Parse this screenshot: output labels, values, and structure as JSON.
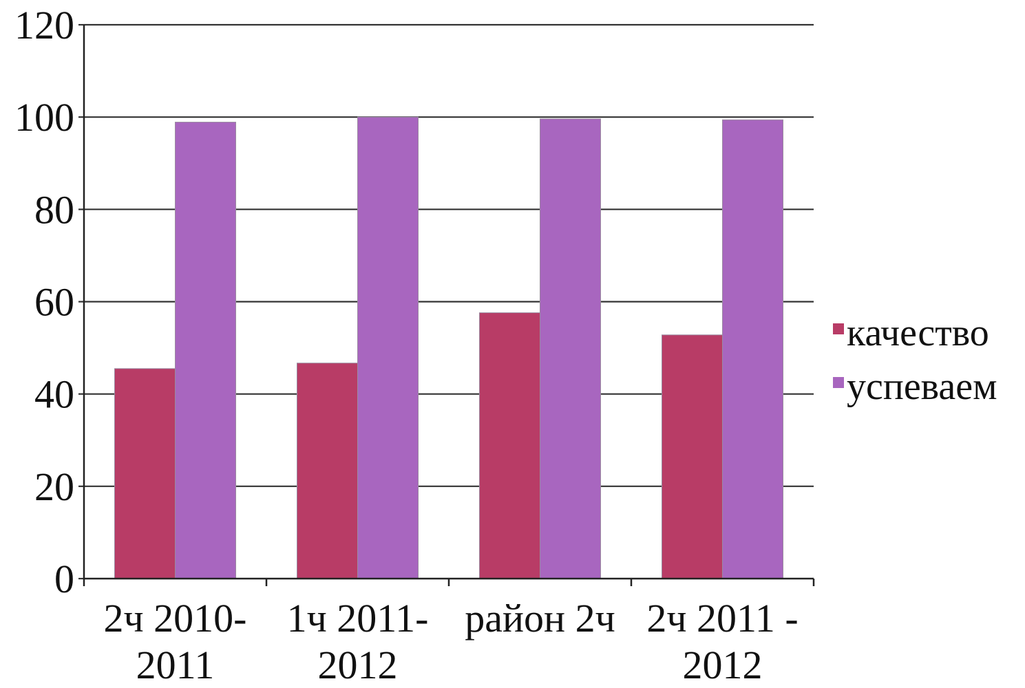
{
  "chart_data": {
    "type": "bar",
    "title": "",
    "xlabel": "",
    "ylabel": "",
    "categories": [
      [
        "2ч 2010-",
        "2011"
      ],
      [
        "1ч 2011-",
        "2012"
      ],
      [
        "район 2ч"
      ],
      [
        "2ч 2011 -",
        "2012"
      ]
    ],
    "series": [
      {
        "name": "качество",
        "color": "#b83c66",
        "values": [
          45.5,
          46.7,
          57.6,
          52.8
        ]
      },
      {
        "name": "успеваем",
        "color": "#a866bf",
        "values": [
          98.9,
          100,
          99.6,
          99.4
        ]
      }
    ],
    "ylim": [
      0,
      120
    ],
    "yticks": [
      0,
      20,
      40,
      60,
      80,
      100,
      120
    ],
    "grid": true,
    "legend_position": "right"
  }
}
